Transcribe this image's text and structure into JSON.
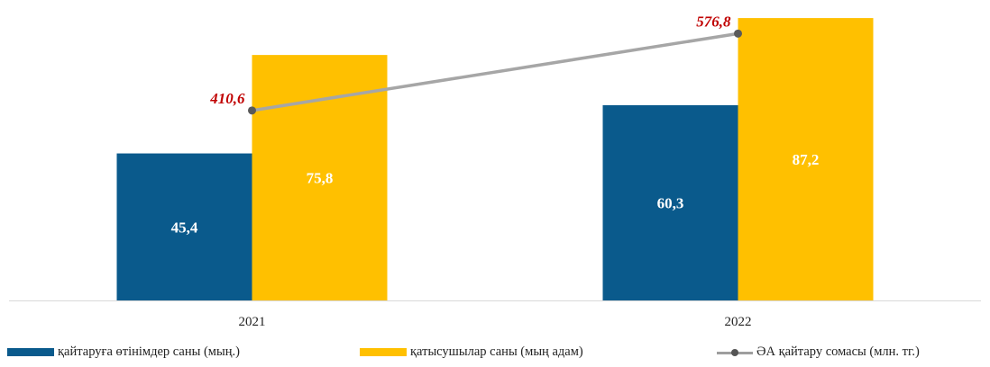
{
  "chart_data": {
    "type": "bar",
    "categories": [
      "2021",
      "2022"
    ],
    "series": [
      {
        "name": "қайтаруға өтінімдер саны (мың.)",
        "kind": "bar",
        "color": "#0a5a8c",
        "values": [
          45.4,
          60.3
        ],
        "labels": [
          "45,4",
          "60,3"
        ]
      },
      {
        "name": "қатысушылар саны (мың адам)",
        "kind": "bar",
        "color": "#ffc000",
        "values": [
          75.8,
          87.2
        ],
        "labels": [
          "75,8",
          "87,2"
        ]
      },
      {
        "name": "ӘА қайтару сомасы (млн. тг.)",
        "kind": "line",
        "axis": "secondary",
        "color": "#a6a6a6",
        "marker_color": "#5a5a5a",
        "label_color": "#c00000",
        "values": [
          410.6,
          576.8
        ],
        "labels": [
          "410,6",
          "576,8"
        ]
      }
    ],
    "ylim": [
      0,
      90
    ],
    "y2lim": [
      0,
      630
    ],
    "grid": false,
    "legend": "bottom",
    "title": "",
    "xlabel": "",
    "ylabel": ""
  }
}
